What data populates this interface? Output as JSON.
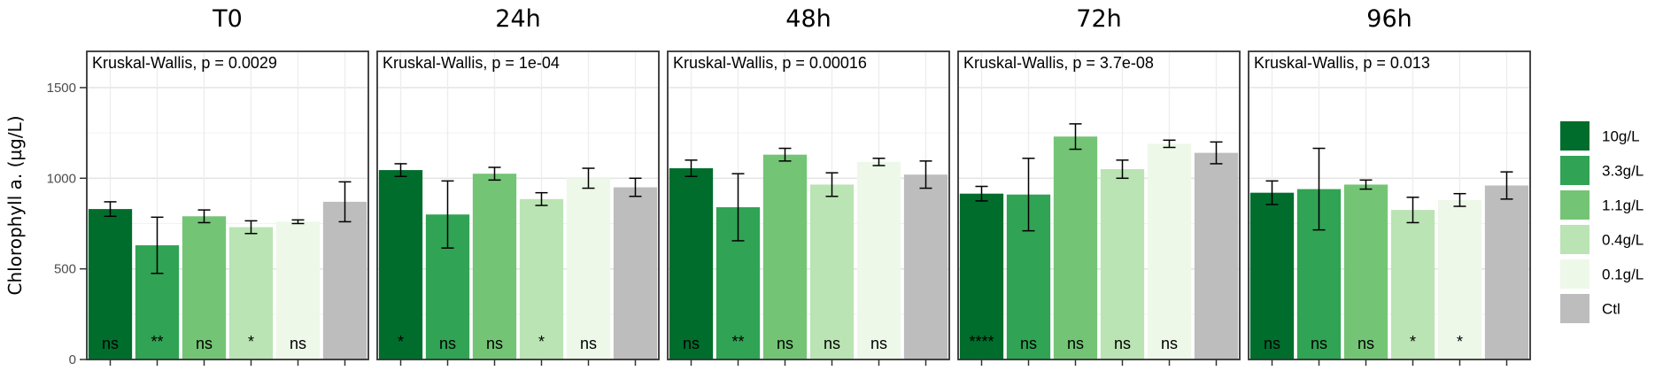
{
  "chart_data": {
    "type": "bar",
    "ylabel": "Chlorophyll a. (µg/L)",
    "ylim": [
      0,
      1700
    ],
    "yticks": [
      0,
      500,
      1000,
      1500
    ],
    "grid": true,
    "legend_position": "right",
    "series": [
      {
        "name": "10g/L",
        "color": "#006d2c"
      },
      {
        "name": "3.3g/L",
        "color": "#31a354"
      },
      {
        "name": "1.1g/L",
        "color": "#74c476"
      },
      {
        "name": "0.4g/L",
        "color": "#bae4b3"
      },
      {
        "name": "0.1g/L",
        "color": "#edf8e9"
      },
      {
        "name": "Ctl",
        "color": "#bdbdbd"
      }
    ],
    "facets": [
      {
        "title": "T0",
        "test_label": "Kruskal-Wallis, p = 0.0029",
        "values": [
          830,
          630,
          790,
          730,
          760,
          870
        ],
        "errors": [
          40,
          155,
          35,
          35,
          10,
          110
        ],
        "significance": [
          "ns",
          "**",
          "ns",
          "*",
          "ns",
          ""
        ]
      },
      {
        "title": "24h",
        "test_label": "Kruskal-Wallis, p = 1e-04",
        "values": [
          1045,
          800,
          1025,
          885,
          1000,
          950
        ],
        "errors": [
          35,
          185,
          35,
          35,
          55,
          50
        ],
        "significance": [
          "*",
          "ns",
          "ns",
          "*",
          "ns",
          ""
        ]
      },
      {
        "title": "48h",
        "test_label": "Kruskal-Wallis, p = 0.00016",
        "values": [
          1055,
          840,
          1130,
          965,
          1090,
          1020
        ],
        "errors": [
          45,
          185,
          35,
          65,
          20,
          75
        ],
        "significance": [
          "ns",
          "**",
          "ns",
          "ns",
          "ns",
          ""
        ]
      },
      {
        "title": "72h",
        "test_label": "Kruskal-Wallis, p = 3.7e-08",
        "values": [
          915,
          910,
          1230,
          1050,
          1190,
          1140
        ],
        "errors": [
          40,
          200,
          70,
          50,
          20,
          60
        ],
        "significance": [
          "****",
          "ns",
          "ns",
          "ns",
          "ns",
          ""
        ]
      },
      {
        "title": "96h",
        "test_label": "Kruskal-Wallis, p = 0.013",
        "values": [
          920,
          940,
          965,
          825,
          880,
          960
        ],
        "errors": [
          65,
          225,
          25,
          70,
          35,
          75
        ],
        "significance": [
          "ns",
          "ns",
          "ns",
          "*",
          "*",
          ""
        ]
      }
    ]
  }
}
